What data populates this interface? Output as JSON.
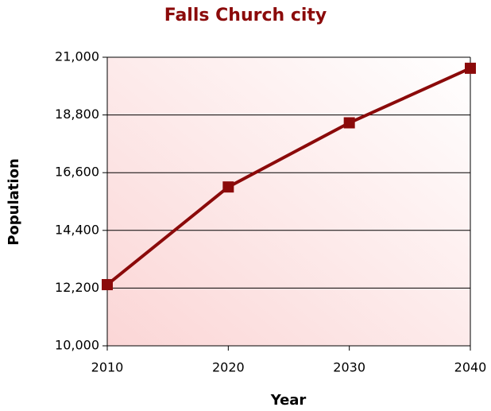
{
  "chart_data": {
    "type": "line",
    "title": "Falls Church city",
    "x_label": "Year",
    "y_label": "Population",
    "x": [
      2010,
      2020,
      2030,
      2040
    ],
    "series": [
      {
        "name": "Population",
        "color": "#8b0a0a",
        "values": [
          12332,
          16055,
          18500,
          20580
        ]
      }
    ],
    "xlim": [
      2010,
      2040
    ],
    "xticks": [
      2010,
      2020,
      2030,
      2040
    ],
    "ylim": [
      10000,
      21000
    ],
    "yticks": [
      {
        "value": 10000,
        "label": "10,000"
      },
      {
        "value": 12200,
        "label": "12,200"
      },
      {
        "value": 14400,
        "label": "14,400"
      },
      {
        "value": 16600,
        "label": "16,600"
      },
      {
        "value": 18800,
        "label": "18,800"
      },
      {
        "value": 21000,
        "label": "21,000"
      }
    ],
    "grid": true
  }
}
